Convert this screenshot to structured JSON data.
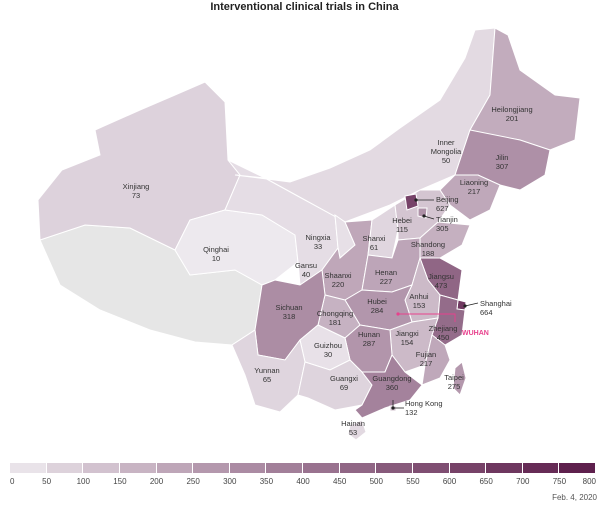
{
  "title": "Interventional clinical trials in China",
  "date_note": "Feb. 4, 2020",
  "callout": "WUHAN",
  "colors": {
    "min": "#f1eef2",
    "max": "#5a1a48",
    "no_data": "#e6e6e6",
    "callout": "#e8418d"
  },
  "legend": {
    "ticks": [
      "0",
      "50",
      "100",
      "150",
      "200",
      "250",
      "300",
      "350",
      "400",
      "450",
      "500",
      "550",
      "600",
      "650",
      "700",
      "750",
      "800"
    ]
  },
  "regions": [
    {
      "name": "Heilongjiang",
      "value": "201"
    },
    {
      "name": "Inner Mongolia",
      "value": "50"
    },
    {
      "name": "Jilin",
      "value": "307"
    },
    {
      "name": "Liaoning",
      "value": "217"
    },
    {
      "name": "Xinjiang",
      "value": "73"
    },
    {
      "name": "Beijing",
      "value": "627"
    },
    {
      "name": "Hebei",
      "value": "115"
    },
    {
      "name": "Tianjin",
      "value": "305"
    },
    {
      "name": "Qinghai",
      "value": "10"
    },
    {
      "name": "Ningxia",
      "value": "33"
    },
    {
      "name": "Shanxi",
      "value": "61"
    },
    {
      "name": "Shandong",
      "value": "188"
    },
    {
      "name": "Gansu",
      "value": "40"
    },
    {
      "name": "Shaanxi",
      "value": "220"
    },
    {
      "name": "Henan",
      "value": "227"
    },
    {
      "name": "Jiangsu",
      "value": "473"
    },
    {
      "name": "Anhui",
      "value": "153"
    },
    {
      "name": "Shanghai",
      "value": "664"
    },
    {
      "name": "Sichuan",
      "value": "318"
    },
    {
      "name": "Hubei",
      "value": "284"
    },
    {
      "name": "Chongqing",
      "value": "181"
    },
    {
      "name": "Zhejiang",
      "value": "450"
    },
    {
      "name": "Hunan",
      "value": "287"
    },
    {
      "name": "Jiangxi",
      "value": "154"
    },
    {
      "name": "Guizhou",
      "value": "30"
    },
    {
      "name": "Fujian",
      "value": "217"
    },
    {
      "name": "Yunnan",
      "value": "65"
    },
    {
      "name": "Guangxi",
      "value": "69"
    },
    {
      "name": "Guangdong",
      "value": "360"
    },
    {
      "name": "Taipei",
      "value": "275"
    },
    {
      "name": "Hong Kong",
      "value": "132"
    },
    {
      "name": "Hainan",
      "value": "53"
    }
  ]
}
